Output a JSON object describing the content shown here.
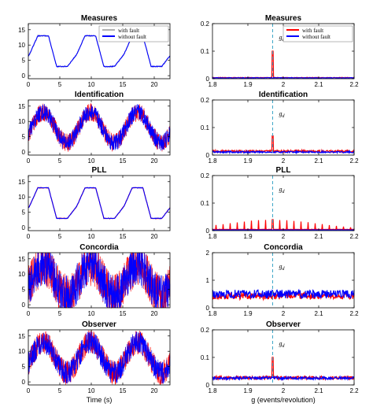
{
  "chart_data": [
    {
      "type": "line",
      "title": "Measures",
      "xlim": [
        0,
        22.5
      ],
      "ylim": [
        -1,
        17
      ],
      "xticks": [
        0,
        5,
        10,
        15,
        20
      ],
      "yticks": [
        0,
        5,
        10,
        15
      ],
      "signal": "trapezoid",
      "noise": 0.15,
      "series": [
        {
          "name": "with fault",
          "color": "#b0b0b0"
        },
        {
          "name": "without fault",
          "color": "#0000ff"
        }
      ],
      "legend": "top-right"
    },
    {
      "type": "line",
      "title": "Measures",
      "xlim": [
        1.8,
        2.2
      ],
      "ylim": [
        0,
        0.2
      ],
      "xticks": [
        1.8,
        1.9,
        2.0,
        2.1,
        2.2
      ],
      "yticks": [
        0,
        0.1,
        0.2
      ],
      "annotation": "g_d",
      "fault_g": 1.97,
      "series": [
        {
          "name": "with fault",
          "color": "#ff0000",
          "baseline": 0.003,
          "noise": 0.002,
          "peak": 0.1,
          "sidebands": 0
        },
        {
          "name": "without fault",
          "color": "#0000ff",
          "baseline": 0.002,
          "noise": 0.002,
          "peak": 0,
          "sidebands": 0
        }
      ],
      "legend": "top-right"
    },
    {
      "type": "line",
      "title": "Identification",
      "xlim": [
        0,
        22.5
      ],
      "ylim": [
        -1,
        17
      ],
      "xticks": [
        0,
        5,
        10,
        15,
        20
      ],
      "yticks": [
        0,
        5,
        10,
        15
      ],
      "signal": "noisy-wave",
      "noise": 3.0,
      "series": [
        {
          "name": "with fault",
          "color": "#ff0000"
        },
        {
          "name": "without fault",
          "color": "#0000ff"
        }
      ]
    },
    {
      "type": "line",
      "title": "Identification",
      "xlim": [
        1.8,
        2.2
      ],
      "ylim": [
        0,
        0.2
      ],
      "xticks": [
        1.8,
        1.9,
        2.0,
        2.1,
        2.2
      ],
      "yticks": [
        0,
        0.1,
        0.2
      ],
      "annotation": "g_d",
      "fault_g": 1.97,
      "series": [
        {
          "name": "with fault",
          "color": "#ff0000",
          "baseline": 0.01,
          "noise": 0.008,
          "peak": 0.07,
          "sidebands": 0
        },
        {
          "name": "without fault",
          "color": "#0000ff",
          "baseline": 0.008,
          "noise": 0.006,
          "peak": 0,
          "sidebands": 0
        }
      ]
    },
    {
      "type": "line",
      "title": "PLL",
      "xlim": [
        0,
        22.5
      ],
      "ylim": [
        -1,
        17
      ],
      "xticks": [
        0,
        5,
        10,
        15,
        20
      ],
      "yticks": [
        0,
        5,
        10,
        15
      ],
      "signal": "trapezoid",
      "noise": 0.1,
      "series": [
        {
          "name": "with fault",
          "color": "#ff0000"
        },
        {
          "name": "without fault",
          "color": "#0000ff"
        }
      ]
    },
    {
      "type": "line",
      "title": "PLL",
      "xlim": [
        1.8,
        2.2
      ],
      "ylim": [
        0,
        0.2
      ],
      "xticks": [
        1.8,
        1.9,
        2.0,
        2.1,
        2.2
      ],
      "yticks": [
        0,
        0.1,
        0.2
      ],
      "annotation": "g_d",
      "fault_g": 1.97,
      "series": [
        {
          "name": "with fault",
          "color": "#ff0000",
          "baseline": 0.004,
          "noise": 0.001,
          "peak": 0.04,
          "sidebands": 0.035
        },
        {
          "name": "without fault",
          "color": "#0000ff",
          "baseline": 0.002,
          "noise": 0.001,
          "peak": 0,
          "sidebands": 0
        }
      ]
    },
    {
      "type": "line",
      "title": "Concordia",
      "xlim": [
        0,
        22.5
      ],
      "ylim": [
        -1,
        17
      ],
      "xticks": [
        0,
        5,
        10,
        15,
        20
      ],
      "yticks": [
        0,
        5,
        10,
        15
      ],
      "signal": "noisy-wave",
      "noise": 7.0,
      "series": [
        {
          "name": "with fault",
          "color": "#ff0000"
        },
        {
          "name": "without fault",
          "color": "#0000ff"
        }
      ]
    },
    {
      "type": "line",
      "title": "Concordia",
      "xlim": [
        1.8,
        2.2
      ],
      "ylim": [
        0,
        2
      ],
      "xticks": [
        1.8,
        1.9,
        2.0,
        2.1,
        2.2
      ],
      "yticks": [
        0,
        1,
        2
      ],
      "annotation": "g_d",
      "fault_g": 1.97,
      "series": [
        {
          "name": "with fault",
          "color": "#ff0000",
          "baseline": 0.3,
          "noise": 0.25,
          "peak": 0,
          "sidebands": 0
        },
        {
          "name": "without fault",
          "color": "#0000ff",
          "baseline": 0.35,
          "noise": 0.3,
          "peak": 0,
          "sidebands": 0
        }
      ]
    },
    {
      "type": "line",
      "title": "Observer",
      "xlim": [
        0,
        22.5
      ],
      "ylim": [
        -1,
        17
      ],
      "xticks": [
        0,
        5,
        10,
        15,
        20
      ],
      "yticks": [
        0,
        5,
        10,
        15
      ],
      "signal": "noisy-wave",
      "noise": 4.0,
      "xlabel": "Time (s)",
      "series": [
        {
          "name": "with fault",
          "color": "#ff0000"
        },
        {
          "name": "without fault",
          "color": "#0000ff"
        }
      ]
    },
    {
      "type": "line",
      "title": "Observer",
      "xlim": [
        1.8,
        2.2
      ],
      "ylim": [
        0,
        0.2
      ],
      "xticks": [
        1.8,
        1.9,
        2.0,
        2.1,
        2.2
      ],
      "yticks": [
        0,
        0.1,
        0.2
      ],
      "annotation": "g_d",
      "fault_g": 1.97,
      "xlabel": "g (events/revolution)",
      "series": [
        {
          "name": "with fault",
          "color": "#ff0000",
          "baseline": 0.02,
          "noise": 0.012,
          "peak": 0.1,
          "sidebands": 0
        },
        {
          "name": "without fault",
          "color": "#0000ff",
          "baseline": 0.02,
          "noise": 0.01,
          "peak": 0,
          "sidebands": 0
        }
      ]
    }
  ]
}
